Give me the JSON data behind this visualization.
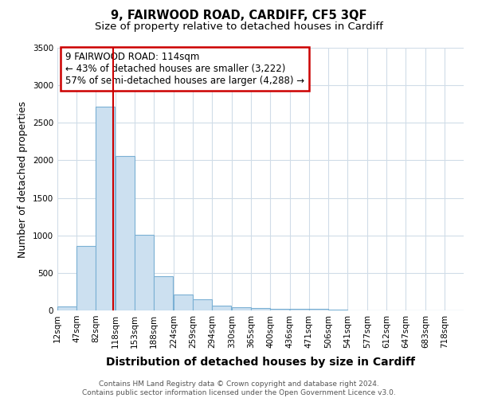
{
  "title": "9, FAIRWOOD ROAD, CARDIFF, CF5 3QF",
  "subtitle": "Size of property relative to detached houses in Cardiff",
  "xlabel": "Distribution of detached houses by size in Cardiff",
  "ylabel": "Number of detached properties",
  "footer_line1": "Contains HM Land Registry data © Crown copyright and database right 2024.",
  "footer_line2": "Contains public sector information licensed under the Open Government Licence v3.0.",
  "annotation_line1": "9 FAIRWOOD ROAD: 114sqm",
  "annotation_line2": "← 43% of detached houses are smaller (3,222)",
  "annotation_line3": "57% of semi-detached houses are larger (4,288) →",
  "bar_color": "#cce0f0",
  "bar_edge_color": "#7ab0d4",
  "vline_color": "#cc0000",
  "vline_position": 114,
  "categories": [
    "12sqm",
    "47sqm",
    "82sqm",
    "118sqm",
    "153sqm",
    "188sqm",
    "224sqm",
    "259sqm",
    "294sqm",
    "330sqm",
    "365sqm",
    "400sqm",
    "436sqm",
    "471sqm",
    "506sqm",
    "541sqm",
    "577sqm",
    "612sqm",
    "647sqm",
    "683sqm",
    "718sqm"
  ],
  "bin_starts": [
    12,
    47,
    82,
    118,
    153,
    188,
    224,
    259,
    294,
    330,
    365,
    400,
    436,
    471,
    506,
    541,
    577,
    612,
    647,
    683,
    718
  ],
  "bin_width": 35,
  "values": [
    55,
    855,
    2720,
    2060,
    1005,
    455,
    215,
    150,
    60,
    42,
    30,
    25,
    22,
    20,
    8,
    5,
    4,
    3,
    2,
    2,
    1
  ],
  "ylim": [
    0,
    3500
  ],
  "yticks": [
    0,
    500,
    1000,
    1500,
    2000,
    2500,
    3000,
    3500
  ],
  "background_color": "#ffffff",
  "grid_color": "#d0dce8",
  "title_fontsize": 10.5,
  "subtitle_fontsize": 9.5,
  "xlabel_fontsize": 10,
  "ylabel_fontsize": 9,
  "tick_fontsize": 7.5,
  "annotation_fontsize": 8.5,
  "annotation_box_color": "#ffffff",
  "annotation_box_edge": "#cc0000",
  "footer_fontsize": 6.5,
  "footer_color": "#555555"
}
